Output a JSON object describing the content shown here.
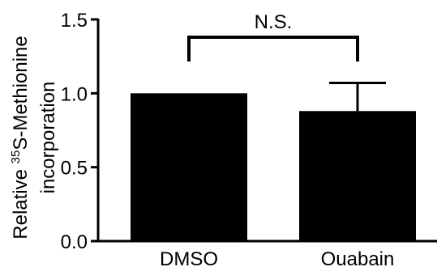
{
  "chart_data": {
    "type": "bar",
    "categories": [
      "DMSO",
      "Ouabain"
    ],
    "values": [
      1.0,
      0.88
    ],
    "error_bars": [
      0.0,
      0.19
    ],
    "ylabel": {
      "line1_prefix": "Relative ",
      "superscript": "35",
      "line1_suffix": "S-Methionine",
      "line2": "incorporation"
    },
    "ylim": [
      0,
      1.5
    ],
    "yticks": [
      "0.0",
      "0.5",
      "1.0",
      "1.5"
    ],
    "annotation": "N.S.",
    "grid": false,
    "legend": "none",
    "bar_color": "#000000"
  }
}
